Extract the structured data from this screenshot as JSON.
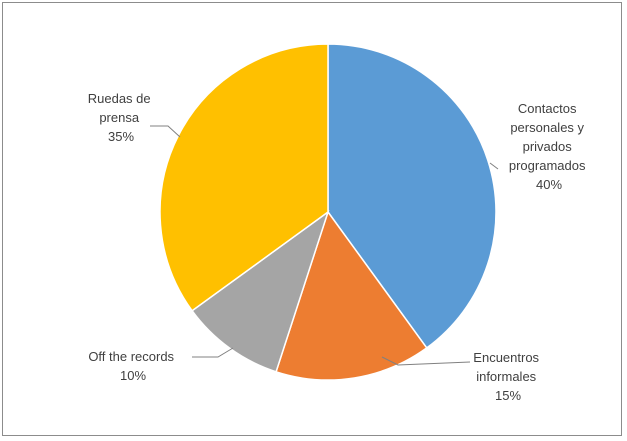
{
  "chart_data": {
    "type": "pie",
    "start_angle_deg": 0,
    "direction": "clockwise",
    "slices": [
      {
        "lines": [
          "Contactos",
          "personales y",
          "privados",
          "programados"
        ],
        "percent_label": "40%",
        "value": 40,
        "color": "#5b9bd5"
      },
      {
        "lines": [
          "Encuentros",
          "informales"
        ],
        "percent_label": "15%",
        "value": 15,
        "color": "#ed7d31"
      },
      {
        "lines": [
          "Off the records"
        ],
        "percent_label": "10%",
        "value": 10,
        "color": "#a5a5a5"
      },
      {
        "lines": [
          "Ruedas de",
          "prensa"
        ],
        "percent_label": "35%",
        "value": 35,
        "color": "#ffc000"
      }
    ]
  }
}
